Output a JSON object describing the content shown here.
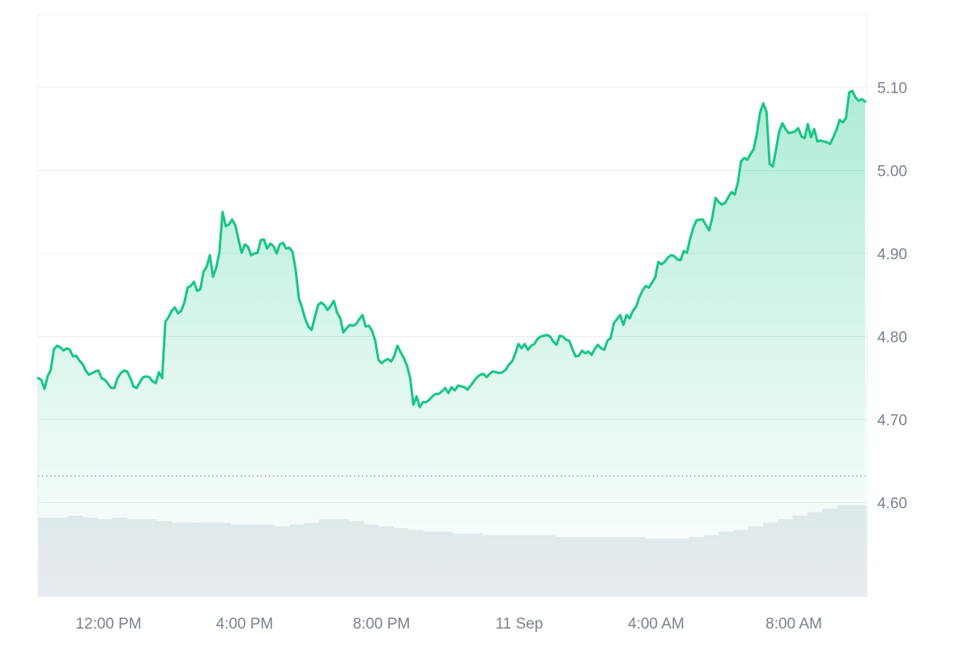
{
  "chart_data": {
    "type": "area",
    "title": "",
    "xlabel": "",
    "ylabel": "",
    "x_ticks": [
      "12:00 PM",
      "4:00 PM",
      "8:00 PM",
      "11 Sep",
      "4:00 AM",
      "8:00 AM"
    ],
    "y_ticks": [
      "5.10",
      "5.00",
      "4.90",
      "4.80",
      "4.70",
      "4.60"
    ],
    "ylim": [
      4.51,
      5.19
    ],
    "grid": "horizontal",
    "reference_line": 4.632,
    "colors": {
      "line": "#16c784",
      "fill": "#16c784",
      "grid": "#e9ecf1",
      "reference": "#9aa1ad",
      "volume": "#e8ebef",
      "tick": "#7a8290"
    },
    "series": [
      {
        "values": [
          4.75,
          4.748,
          4.737,
          4.752,
          4.76,
          4.785,
          4.789,
          4.787,
          4.783,
          4.786,
          4.784,
          4.776,
          4.777,
          4.771,
          4.767,
          4.759,
          4.754,
          4.756,
          4.758,
          4.759,
          4.75,
          4.748,
          4.743,
          4.738,
          4.738,
          4.75,
          4.756,
          4.759,
          4.758,
          4.75,
          4.74,
          4.738,
          4.745,
          4.751,
          4.752,
          4.751,
          4.746,
          4.744,
          4.757,
          4.75,
          4.818,
          4.823,
          4.831,
          4.835,
          4.828,
          4.831,
          4.841,
          4.859,
          4.861,
          4.866,
          4.855,
          4.857,
          4.878,
          4.884,
          4.898,
          4.872,
          4.883,
          4.901,
          4.95,
          4.933,
          4.935,
          4.941,
          4.934,
          4.917,
          4.901,
          4.911,
          4.908,
          4.898,
          4.9,
          4.901,
          4.916,
          4.917,
          4.906,
          4.912,
          4.909,
          4.9,
          4.911,
          4.913,
          4.906,
          4.907,
          4.902,
          4.88,
          4.846,
          4.835,
          4.821,
          4.812,
          4.808,
          4.823,
          4.838,
          4.841,
          4.838,
          4.832,
          4.837,
          4.843,
          4.829,
          4.822,
          4.805,
          4.81,
          4.814,
          4.813,
          4.815,
          4.821,
          4.826,
          4.812,
          4.813,
          4.807,
          4.795,
          4.772,
          4.768,
          4.771,
          4.773,
          4.77,
          4.777,
          4.789,
          4.781,
          4.774,
          4.765,
          4.75,
          4.718,
          4.728,
          4.715,
          4.721,
          4.721,
          4.724,
          4.728,
          4.731,
          4.731,
          4.734,
          4.738,
          4.732,
          4.739,
          4.735,
          4.741,
          4.74,
          4.739,
          4.736,
          4.741,
          4.746,
          4.751,
          4.754,
          4.755,
          4.751,
          4.755,
          4.758,
          4.757,
          4.756,
          4.757,
          4.76,
          4.766,
          4.77,
          4.779,
          4.791,
          4.786,
          4.791,
          4.784,
          4.789,
          4.791,
          4.797,
          4.8,
          4.801,
          4.802,
          4.8,
          4.794,
          4.79,
          4.801,
          4.8,
          4.796,
          4.795,
          4.785,
          4.776,
          4.777,
          4.783,
          4.78,
          4.782,
          4.778,
          4.785,
          4.79,
          4.786,
          4.784,
          4.795,
          4.798,
          4.816,
          4.821,
          4.826,
          4.814,
          4.826,
          4.822,
          4.831,
          4.836,
          4.847,
          4.855,
          4.861,
          4.859,
          4.865,
          4.871,
          4.89,
          4.887,
          4.89,
          4.895,
          4.898,
          4.897,
          4.893,
          4.892,
          4.903,
          4.901,
          4.918,
          4.931,
          4.94,
          4.941,
          4.941,
          4.934,
          4.928,
          4.944,
          4.967,
          4.962,
          4.959,
          4.961,
          4.968,
          4.974,
          4.971,
          4.985,
          5.011,
          5.015,
          5.013,
          5.02,
          5.026,
          5.045,
          5.07,
          5.081,
          5.071,
          5.008,
          5.005,
          5.025,
          5.047,
          5.057,
          5.05,
          5.045,
          5.046,
          5.047,
          5.051,
          5.041,
          5.039,
          5.056,
          5.04,
          5.05,
          5.035,
          5.036,
          5.035,
          5.034,
          5.032,
          5.04,
          5.049,
          5.061,
          5.058,
          5.063,
          5.094,
          5.096,
          5.088,
          5.084,
          5.086,
          5.083
        ]
      }
    ],
    "volume": [
      0.45,
      0.45,
      0.46,
      0.45,
      0.44,
      0.45,
      0.44,
      0.44,
      0.43,
      0.42,
      0.42,
      0.42,
      0.42,
      0.41,
      0.41,
      0.41,
      0.4,
      0.41,
      0.42,
      0.44,
      0.44,
      0.43,
      0.41,
      0.4,
      0.39,
      0.38,
      0.37,
      0.37,
      0.36,
      0.36,
      0.35,
      0.35,
      0.35,
      0.35,
      0.35,
      0.34,
      0.34,
      0.34,
      0.34,
      0.34,
      0.34,
      0.33,
      0.33,
      0.33,
      0.34,
      0.35,
      0.37,
      0.38,
      0.4,
      0.42,
      0.44,
      0.46,
      0.48,
      0.5,
      0.52,
      0.52
    ]
  }
}
